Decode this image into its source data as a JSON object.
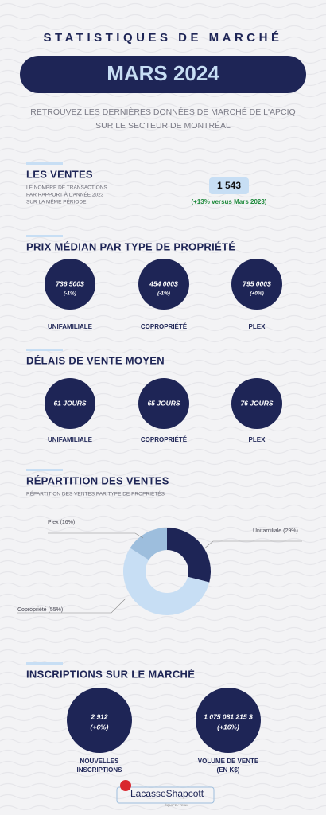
{
  "header": {
    "title": "STATISTIQUES DE MARCHÉ",
    "period": "MARS 2024",
    "subtitle": [
      "RETROUVEZ LES DERNIÈRES DONNÉES DE MARCHÉ DE L'APCIQ",
      "SUR LE SECTEUR DE MONTRÉAL"
    ]
  },
  "ventes": {
    "title": "LES VENTES",
    "description": [
      "LE NOMBRE DE TRANSACTIONS",
      "PAR RAPPORT À L'ANNÉE 2023",
      "SUR LA MÊME PÉRIODE"
    ],
    "count": "1 543",
    "change": "(+13% versus Mars 2023)"
  },
  "prix": {
    "title": "PRIX MÉDIAN PAR TYPE DE PROPRIÉTÉ",
    "items": [
      {
        "value": "736 500$",
        "change": "(-1%)",
        "label": "UNIFAMILIALE"
      },
      {
        "value": "454 000$",
        "change": "(-1%)",
        "label": "COPROPRIÉTÉ"
      },
      {
        "value": "795 000$",
        "change": "(+0%)",
        "label": "PLEX"
      }
    ]
  },
  "delais": {
    "title": "DÉLAIS DE VENTE MOYEN",
    "items": [
      {
        "value": "61 JOURS",
        "label": "UNIFAMILIALE"
      },
      {
        "value": "65 JOURS",
        "label": "COPROPRIÉTÉ"
      },
      {
        "value": "76 JOURS",
        "label": "PLEX"
      }
    ]
  },
  "repartition": {
    "title": "RÉPARTITION DES VENTES",
    "subtitle": "RÉPARTITION DES VENTES PAR TYPE DE PROPRIÉTÉS",
    "chart": {
      "type": "donut",
      "slices": [
        {
          "label": "Unifamiliale (29%)",
          "value": 29,
          "color": "#1e2556"
        },
        {
          "label": "Copropriété (55%)",
          "value": 55,
          "color": "#c7def4"
        },
        {
          "label": "Plex (16%)",
          "value": 16,
          "color": "#9dbedd"
        }
      ]
    }
  },
  "inscriptions": {
    "title": "INSCRIPTIONS SUR LE MARCHÉ",
    "items": [
      {
        "value": "2 912",
        "change": "(+6%)",
        "label": [
          "NOUVELLES",
          "INSCRIPTIONS"
        ]
      },
      {
        "value": "1 075 081 215 $",
        "change": "(+16%)",
        "label": [
          "VOLUME DE VENTE",
          "(EN K$)"
        ]
      }
    ]
  },
  "logo": {
    "name": "LacasseShapcott",
    "tagline": "ÉQUIPE / TEAM"
  }
}
